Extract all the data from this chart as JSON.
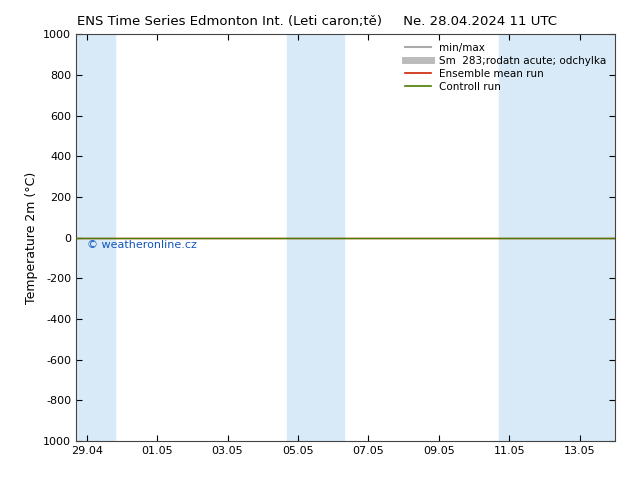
{
  "title_left": "ENS Time Series Edmonton Int. (Leti caron;tě)",
  "title_right": "Ne. 28.04.2024 11 UTC",
  "ylabel": "Temperature 2m (°C)",
  "watermark": "© weatheronline.cz",
  "ylim_top": -1000,
  "ylim_bottom": 1000,
  "yticks": [
    -1000,
    -800,
    -600,
    -400,
    -200,
    0,
    200,
    400,
    600,
    800,
    1000
  ],
  "xtick_labels": [
    "29.04",
    "01.05",
    "03.05",
    "05.05",
    "07.05",
    "09.05",
    "11.05",
    "13.05"
  ],
  "x_positions": [
    0,
    2,
    4,
    6,
    8,
    10,
    12,
    14
  ],
  "xlim": [
    -0.3,
    15.0
  ],
  "background_color": "#ffffff",
  "plot_bg_color": "#ffffff",
  "shaded_bands": [
    {
      "x_start": -0.3,
      "x_end": 0.8
    },
    {
      "x_start": 5.7,
      "x_end": 7.3
    },
    {
      "x_start": 11.7,
      "x_end": 15.0
    }
  ],
  "shaded_color": "#d8eaf8",
  "control_run_y": 0,
  "control_run_color": "#4a7c00",
  "ensemble_mean_color": "#cc2200",
  "legend_entries": [
    {
      "label": "min/max",
      "color": "#aaaaaa",
      "lw": 1.5
    },
    {
      "label": "Sm  283;rodatn acute; odchylka",
      "color": "#bbbbbb",
      "lw": 5
    },
    {
      "label": "Ensemble mean run",
      "color": "#cc2200",
      "lw": 1.2
    },
    {
      "label": "Controll run",
      "color": "#4a7c00",
      "lw": 1.2
    }
  ],
  "title_fontsize": 9.5,
  "axis_label_fontsize": 9,
  "tick_fontsize": 8,
  "watermark_color": "#1155bb",
  "watermark_fontsize": 8,
  "legend_fontsize": 7.5
}
